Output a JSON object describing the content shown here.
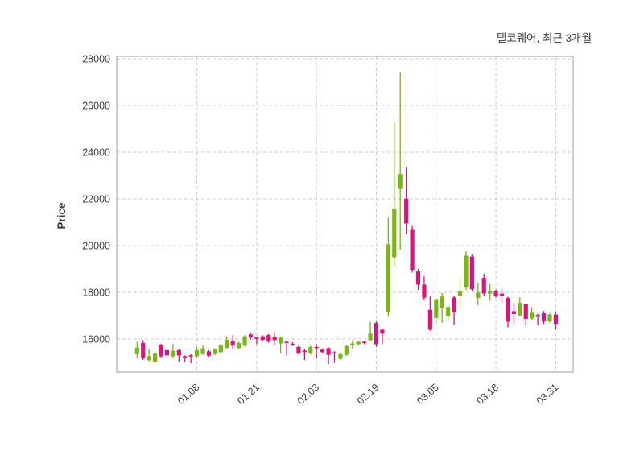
{
  "chart_data": {
    "type": "candlestick",
    "title": "텔코웨어, 최근 3개월",
    "ylabel": "Price",
    "up_color": "#7cb518",
    "down_color": "#db1477",
    "grid_color": "#cdcdcd",
    "spine_color": "#adadad",
    "grid": true,
    "legend_position": "none",
    "ylim": [
      14586,
      28103
    ],
    "y_ticks": [
      16000,
      18000,
      20000,
      22000,
      24000,
      26000,
      28000
    ],
    "x_tick_labels": [
      "01.08",
      "01.21",
      "02.03",
      "02.19",
      "03.05",
      "03.18",
      "03.31"
    ],
    "x_tick_indices": [
      10,
      20,
      30,
      40,
      50,
      60,
      70
    ],
    "ohlc_legend": [
      "open",
      "high",
      "low",
      "close"
    ],
    "ohlc": [
      [
        15350,
        15880,
        15160,
        15630
      ],
      [
        15830,
        15950,
        15100,
        15200
      ],
      [
        15090,
        15545,
        15050,
        15260
      ],
      [
        15030,
        15420,
        14980,
        15375
      ],
      [
        15750,
        15800,
        15200,
        15260
      ],
      [
        15520,
        15600,
        15250,
        15300
      ],
      [
        15260,
        15795,
        15200,
        15490
      ],
      [
        15520,
        15560,
        15030,
        15295
      ],
      [
        15260,
        15300,
        15000,
        15200
      ],
      [
        15300,
        15350,
        14960,
        15260
      ],
      [
        15260,
        15660,
        15220,
        15510
      ],
      [
        15355,
        15740,
        15310,
        15605
      ],
      [
        15470,
        15520,
        15240,
        15285
      ],
      [
        15355,
        15600,
        15310,
        15545
      ],
      [
        15435,
        15800,
        15400,
        15740
      ],
      [
        15625,
        16115,
        15580,
        15965
      ],
      [
        15920,
        16170,
        15545,
        15715
      ],
      [
        15605,
        15880,
        15560,
        15830
      ],
      [
        15715,
        16160,
        15670,
        16115
      ],
      [
        16195,
        16280,
        15980,
        16060
      ],
      [
        16060,
        16100,
        15775,
        16010
      ],
      [
        16115,
        16160,
        15920,
        15965
      ],
      [
        16170,
        16220,
        15840,
        15885
      ],
      [
        16100,
        16290,
        15715,
        15950
      ],
      [
        15810,
        16090,
        15375,
        16060
      ],
      [
        15885,
        15940,
        15290,
        15830
      ],
      [
        15800,
        15870,
        15700,
        15750
      ],
      [
        15660,
        15710,
        15330,
        15375
      ],
      [
        15500,
        15550,
        15095,
        15440
      ],
      [
        15375,
        15700,
        15330,
        15660
      ],
      [
        15660,
        15775,
        15150,
        15605
      ],
      [
        15545,
        15600,
        15390,
        15435
      ],
      [
        15605,
        15650,
        14925,
        15320
      ],
      [
        15430,
        15480,
        14980,
        15380
      ],
      [
        15150,
        15400,
        15100,
        15355
      ],
      [
        15320,
        15740,
        15280,
        15695
      ],
      [
        15740,
        15950,
        15580,
        15810
      ],
      [
        15775,
        15930,
        15730,
        15885
      ],
      [
        15885,
        15930,
        15780,
        15830
      ],
      [
        15945,
        16740,
        15900,
        16230
      ],
      [
        16685,
        16765,
        15660,
        15775
      ],
      [
        16400,
        16450,
        15775,
        16230
      ],
      [
        17140,
        21200,
        16950,
        20060
      ],
      [
        19500,
        25310,
        19130,
        21580
      ],
      [
        22430,
        27400,
        19810,
        23060
      ],
      [
        22010,
        23340,
        20500,
        20950
      ],
      [
        20670,
        20840,
        18845,
        18960
      ],
      [
        18900,
        19000,
        18100,
        18330
      ],
      [
        18330,
        18680,
        17650,
        17770
      ],
      [
        17250,
        17820,
        16350,
        16400
      ],
      [
        16900,
        17740,
        16660,
        17700
      ],
      [
        17310,
        17980,
        16690,
        17820
      ],
      [
        16970,
        17430,
        16800,
        17370
      ],
      [
        17780,
        17830,
        16610,
        17140
      ],
      [
        17840,
        18600,
        17350,
        18050
      ],
      [
        18200,
        19760,
        18100,
        19570
      ],
      [
        19530,
        19620,
        18050,
        18140
      ],
      [
        17760,
        18400,
        17450,
        17990
      ],
      [
        18620,
        18800,
        17820,
        17950
      ],
      [
        17940,
        18350,
        17630,
        18060
      ],
      [
        18060,
        18110,
        17770,
        17820
      ],
      [
        17945,
        18160,
        17570,
        17860
      ],
      [
        17760,
        17810,
        16500,
        16740
      ],
      [
        17190,
        17545,
        16655,
        17070
      ],
      [
        17010,
        17785,
        16960,
        17545
      ],
      [
        17485,
        17530,
        16590,
        16860
      ],
      [
        16880,
        17365,
        16830,
        17120
      ],
      [
        17030,
        17080,
        16590,
        16950
      ],
      [
        17100,
        17200,
        16650,
        16750
      ],
      [
        16750,
        17100,
        16700,
        17050
      ],
      [
        17050,
        17150,
        16400,
        16650
      ]
    ]
  }
}
